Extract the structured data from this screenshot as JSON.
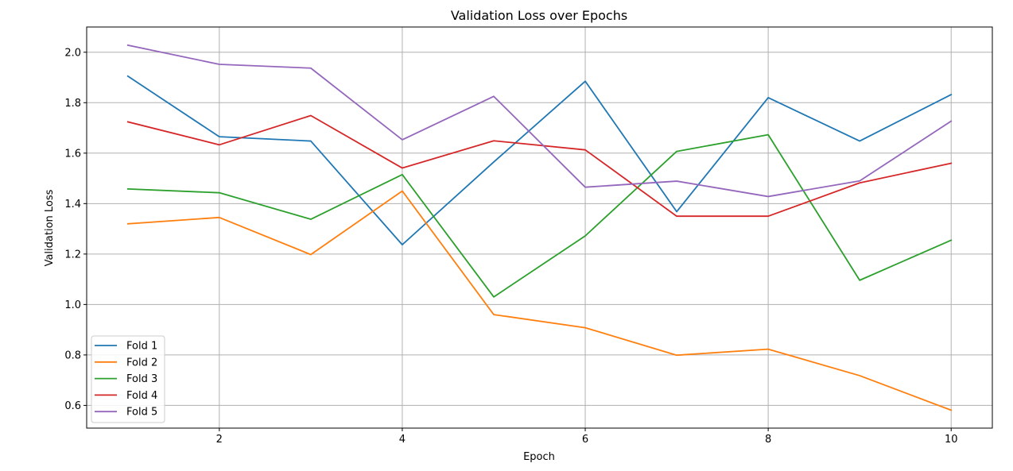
{
  "chart_data": {
    "type": "line",
    "title": "Validation Loss over Epochs",
    "xlabel": "Epoch",
    "ylabel": "Validation Loss",
    "xlim": [
      0.55,
      10.45
    ],
    "ylim": [
      0.51,
      2.1
    ],
    "xticks": [
      2,
      4,
      6,
      8,
      10
    ],
    "yticks": [
      0.6,
      0.8,
      1.0,
      1.2,
      1.4,
      1.6,
      1.8,
      2.0
    ],
    "xtick_labels": [
      "2",
      "4",
      "6",
      "8",
      "10"
    ],
    "ytick_labels": [
      "0.6",
      "0.8",
      "1.0",
      "1.2",
      "1.4",
      "1.6",
      "1.8",
      "2.0"
    ],
    "grid": true,
    "legend_position": "lower-left",
    "x": [
      1,
      2,
      3,
      4,
      5,
      6,
      7,
      8,
      9,
      10
    ],
    "series": [
      {
        "name": "Fold 1",
        "color": "#1f77b4",
        "values": [
          1.905,
          1.665,
          1.648,
          1.237,
          1.565,
          1.885,
          1.368,
          1.82,
          1.648,
          1.832
        ]
      },
      {
        "name": "Fold 2",
        "color": "#ff7f0e",
        "values": [
          1.32,
          1.345,
          1.198,
          1.45,
          0.96,
          0.908,
          0.799,
          0.823,
          0.718,
          0.581
        ]
      },
      {
        "name": "Fold 3",
        "color": "#2ca02c",
        "values": [
          1.458,
          1.443,
          1.338,
          1.515,
          1.03,
          1.272,
          1.607,
          1.673,
          1.096,
          1.255
        ]
      },
      {
        "name": "Fold 4",
        "color": "#d62728",
        "values": [
          1.724,
          1.633,
          1.749,
          1.541,
          1.649,
          1.613,
          1.35,
          1.35,
          1.482,
          1.56
        ]
      },
      {
        "name": "Fold 5",
        "color": "#9467bd",
        "values": [
          2.028,
          1.952,
          1.937,
          1.653,
          1.825,
          1.465,
          1.489,
          1.428,
          1.49,
          1.727
        ]
      }
    ]
  }
}
